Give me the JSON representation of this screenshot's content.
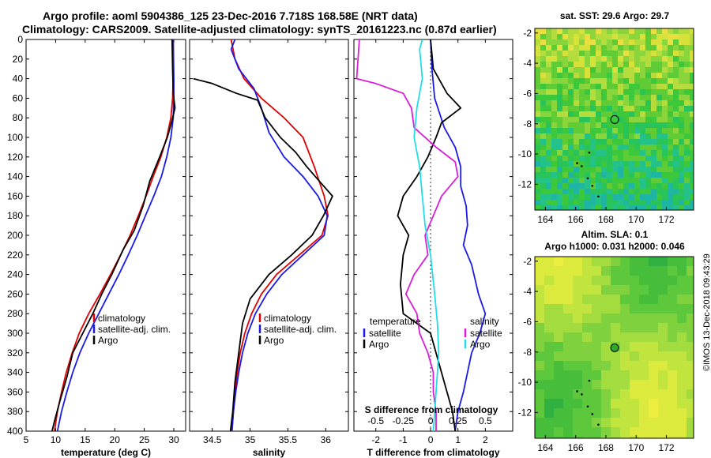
{
  "header": {
    "line1": "Argo profile: aoml 5904386_125 23-Dec-2016 7.718S 168.58E (NRT data)",
    "line2": "Climatology: CARS2009. Satellite-adjusted climatology: synTS_20161223.nc (0.87d earlier)"
  },
  "colors": {
    "climatology": "#e00000",
    "satellite": "#1a1ae6",
    "argo": "#000000",
    "s_diff": "#d81ed8",
    "t_diff": "#22dde6"
  },
  "chart_data": [
    {
      "type": "line",
      "id": "temperature",
      "xlabel": "temperature (deg C)",
      "ylim": [
        0,
        400
      ],
      "xlim": [
        5,
        32
      ],
      "xticks": [
        5,
        10,
        15,
        20,
        25,
        30
      ],
      "yticks": [
        0,
        20,
        40,
        60,
        80,
        100,
        120,
        140,
        160,
        180,
        200,
        220,
        240,
        260,
        280,
        300,
        320,
        340,
        360,
        380,
        400
      ],
      "legend": [
        "climatology",
        "satellite-adj. clim.",
        "Argo"
      ],
      "series": [
        {
          "name": "climatology",
          "color": "#e00000",
          "points": [
            [
              29.9,
              0
            ],
            [
              29.9,
              40
            ],
            [
              29.8,
              60
            ],
            [
              29.5,
              80
            ],
            [
              28.8,
              100
            ],
            [
              27.8,
              120
            ],
            [
              26.5,
              140
            ],
            [
              25.3,
              160
            ],
            [
              24.0,
              180
            ],
            [
              22.6,
              200
            ],
            [
              21.0,
              220
            ],
            [
              19.3,
              240
            ],
            [
              17.5,
              260
            ],
            [
              15.6,
              280
            ],
            [
              14.0,
              300
            ],
            [
              12.8,
              320
            ],
            [
              11.8,
              340
            ],
            [
              11.0,
              360
            ],
            [
              10.3,
              380
            ],
            [
              9.8,
              400
            ]
          ]
        },
        {
          "name": "satellite-adj. clim.",
          "color": "#1a1ae6",
          "points": [
            [
              29.9,
              0
            ],
            [
              30.0,
              40
            ],
            [
              30.0,
              60
            ],
            [
              29.9,
              80
            ],
            [
              29.5,
              100
            ],
            [
              28.8,
              120
            ],
            [
              27.9,
              140
            ],
            [
              26.6,
              160
            ],
            [
              25.2,
              180
            ],
            [
              23.8,
              200
            ],
            [
              22.3,
              220
            ],
            [
              20.7,
              240
            ],
            [
              19.0,
              260
            ],
            [
              17.3,
              280
            ],
            [
              15.6,
              300
            ],
            [
              14.1,
              320
            ],
            [
              12.9,
              340
            ],
            [
              11.9,
              360
            ],
            [
              11.0,
              380
            ],
            [
              10.3,
              400
            ]
          ]
        },
        {
          "name": "Argo",
          "color": "#000000",
          "points": [
            [
              29.7,
              0
            ],
            [
              29.8,
              30
            ],
            [
              29.9,
              55
            ],
            [
              30.2,
              70
            ],
            [
              29.6,
              85
            ],
            [
              28.9,
              100
            ],
            [
              27.6,
              120
            ],
            [
              25.9,
              145
            ],
            [
              24.8,
              170
            ],
            [
              23.3,
              195
            ],
            [
              21.4,
              215
            ],
            [
              19.5,
              240
            ],
            [
              17.8,
              260
            ],
            [
              16.3,
              280
            ],
            [
              14.6,
              300
            ],
            [
              12.9,
              320
            ],
            [
              11.9,
              345
            ],
            [
              10.7,
              370
            ],
            [
              9.8,
              390
            ],
            [
              9.4,
              400
            ]
          ]
        }
      ]
    },
    {
      "type": "line",
      "id": "salinity",
      "xlabel": "salinity",
      "ylim": [
        0,
        400
      ],
      "xlim": [
        34.2,
        36.3
      ],
      "xticks": [
        34.5,
        35,
        35.5,
        36
      ],
      "legend": [
        "climatology",
        "satellite-adj. clim.",
        "Argo"
      ],
      "series": [
        {
          "name": "climatology",
          "color": "#e00000",
          "points": [
            [
              34.75,
              0
            ],
            [
              34.8,
              20
            ],
            [
              34.92,
              40
            ],
            [
              35.15,
              60
            ],
            [
              35.45,
              80
            ],
            [
              35.7,
              100
            ],
            [
              35.85,
              130
            ],
            [
              35.98,
              160
            ],
            [
              36.03,
              180
            ],
            [
              35.95,
              200
            ],
            [
              35.65,
              220
            ],
            [
              35.35,
              240
            ],
            [
              35.15,
              260
            ],
            [
              35.02,
              280
            ],
            [
              34.93,
              300
            ],
            [
              34.87,
              320
            ],
            [
              34.83,
              340
            ],
            [
              34.8,
              360
            ],
            [
              34.78,
              380
            ],
            [
              34.76,
              400
            ]
          ]
        },
        {
          "name": "satellite-adj. clim.",
          "color": "#1a1ae6",
          "points": [
            [
              34.8,
              0
            ],
            [
              34.75,
              10
            ],
            [
              34.85,
              30
            ],
            [
              35.05,
              50
            ],
            [
              35.15,
              70
            ],
            [
              35.25,
              95
            ],
            [
              35.45,
              120
            ],
            [
              35.7,
              140
            ],
            [
              35.9,
              160
            ],
            [
              36.02,
              180
            ],
            [
              35.98,
              200
            ],
            [
              35.7,
              220
            ],
            [
              35.42,
              240
            ],
            [
              35.22,
              260
            ],
            [
              35.07,
              280
            ],
            [
              34.97,
              300
            ],
            [
              34.9,
              320
            ],
            [
              34.85,
              340
            ],
            [
              34.81,
              360
            ],
            [
              34.78,
              380
            ],
            [
              34.76,
              400
            ]
          ]
        },
        {
          "name": "Argo",
          "color": "#000000",
          "points": [
            [
              34.25,
              40
            ],
            [
              34.5,
              45
            ],
            [
              34.82,
              55
            ],
            [
              35.1,
              62
            ],
            [
              35.2,
              80
            ],
            [
              35.4,
              100
            ],
            [
              35.6,
              115
            ],
            [
              35.75,
              130
            ],
            [
              35.92,
              145
            ],
            [
              36.09,
              160
            ],
            [
              35.97,
              180
            ],
            [
              35.82,
              200
            ],
            [
              35.55,
              220
            ],
            [
              35.25,
              240
            ],
            [
              35.0,
              265
            ],
            [
              34.9,
              290
            ],
            [
              34.85,
              320
            ],
            [
              34.8,
              350
            ],
            [
              34.77,
              380
            ],
            [
              34.74,
              400
            ]
          ]
        }
      ]
    },
    {
      "type": "line",
      "id": "difference",
      "xlabel": "T difference from climatology",
      "top_xlabel": "S difference from climatology",
      "ylim": [
        0,
        400
      ],
      "xlim": [
        -2.8,
        3.0
      ],
      "xticks": [
        -2,
        -1,
        0,
        1,
        2
      ],
      "top_axis": {
        "label_values": [
          "-0.5",
          "-0.25",
          "0",
          "0.25",
          "0.5"
        ],
        "label_positions_t": [
          -2,
          -1,
          0,
          1,
          2
        ]
      },
      "legend_temperature": {
        "title": "temperature",
        "items": [
          "satellite",
          "Argo"
        ]
      },
      "legend_salinity": {
        "title": "salinity",
        "items": [
          "satellite",
          "Argo"
        ]
      },
      "series": [
        {
          "name": "T satellite",
          "color": "#1a1ae6",
          "points": [
            [
              0,
              0
            ],
            [
              0.05,
              30
            ],
            [
              0.15,
              60
            ],
            [
              0.5,
              90
            ],
            [
              0.9,
              110
            ],
            [
              1.1,
              130
            ],
            [
              1.1,
              150
            ],
            [
              1.3,
              170
            ],
            [
              1.35,
              190
            ],
            [
              1.2,
              210
            ],
            [
              1.5,
              230
            ],
            [
              1.75,
              260
            ],
            [
              2.0,
              280
            ],
            [
              1.8,
              300
            ],
            [
              1.5,
              320
            ],
            [
              1.35,
              340
            ],
            [
              1.2,
              360
            ],
            [
              1.0,
              380
            ],
            [
              0.9,
              400
            ]
          ]
        },
        {
          "name": "T Argo",
          "color": "#000000",
          "points": [
            [
              0,
              0
            ],
            [
              0.1,
              30
            ],
            [
              0.6,
              55
            ],
            [
              1.1,
              70
            ],
            [
              0.4,
              85
            ],
            [
              0.2,
              100
            ],
            [
              -0.1,
              120
            ],
            [
              -0.5,
              140
            ],
            [
              -1.0,
              160
            ],
            [
              -1.2,
              180
            ],
            [
              -0.8,
              200
            ],
            [
              -1.0,
              220
            ],
            [
              -1.1,
              250
            ],
            [
              -1.0,
              280
            ],
            [
              0.0,
              300
            ],
            [
              0.3,
              330
            ],
            [
              0.6,
              360
            ],
            [
              0.8,
              380
            ],
            [
              0.9,
              400
            ]
          ]
        },
        {
          "name": "S satellite",
          "color": "#d81ed8",
          "points": [
            [
              -2.6,
              0
            ],
            [
              -2.7,
              40
            ],
            [
              -2.0,
              45
            ],
            [
              -1.0,
              55
            ],
            [
              -0.7,
              70
            ],
            [
              -0.6,
              90
            ],
            [
              0.2,
              110
            ],
            [
              0.9,
              125
            ],
            [
              1.0,
              140
            ],
            [
              0.4,
              160
            ],
            [
              0.1,
              180
            ],
            [
              -0.2,
              200
            ],
            [
              -0.1,
              220
            ],
            [
              -0.6,
              240
            ],
            [
              -0.9,
              260
            ],
            [
              -0.5,
              280
            ],
            [
              -0.4,
              300
            ],
            [
              -0.1,
              320
            ],
            [
              0.1,
              340
            ],
            [
              0.1,
              360
            ],
            [
              0.2,
              380
            ],
            [
              0.2,
              400
            ]
          ]
        },
        {
          "name": "S Argo",
          "color": "#22dde6",
          "points": [
            [
              -0.3,
              0
            ],
            [
              -0.4,
              10
            ],
            [
              -0.3,
              40
            ],
            [
              -0.5,
              70
            ],
            [
              -0.6,
              100
            ],
            [
              -0.4,
              130
            ],
            [
              -0.3,
              160
            ],
            [
              -0.2,
              190
            ],
            [
              0.0,
              220
            ],
            [
              0.15,
              260
            ],
            [
              0.25,
              290
            ],
            [
              0.3,
              320
            ],
            [
              0.2,
              360
            ],
            [
              0.1,
              400
            ]
          ]
        }
      ]
    },
    {
      "type": "heatmap",
      "id": "sst_map",
      "title": "sat. SST: 29.6 Argo: 29.7",
      "xticks": [
        164,
        166,
        168,
        170,
        172
      ],
      "yticks": [
        -2,
        -4,
        -6,
        -8,
        -10,
        -12
      ],
      "marker": {
        "lon": 168.58,
        "lat": -7.718
      }
    },
    {
      "type": "heatmap",
      "id": "sla_map",
      "title": "Altim. SLA: 0.1",
      "subtitle": "Argo h1000: 0.031 h2000: 0.046",
      "xticks": [
        164,
        166,
        168,
        170,
        172
      ],
      "yticks": [
        -2,
        -4,
        -6,
        -8,
        -10,
        -12
      ],
      "marker": {
        "lon": 168.58,
        "lat": -7.718
      }
    }
  ],
  "footer": {
    "stamp": "©IMOS 13-Dec-2018 09:43:29"
  }
}
